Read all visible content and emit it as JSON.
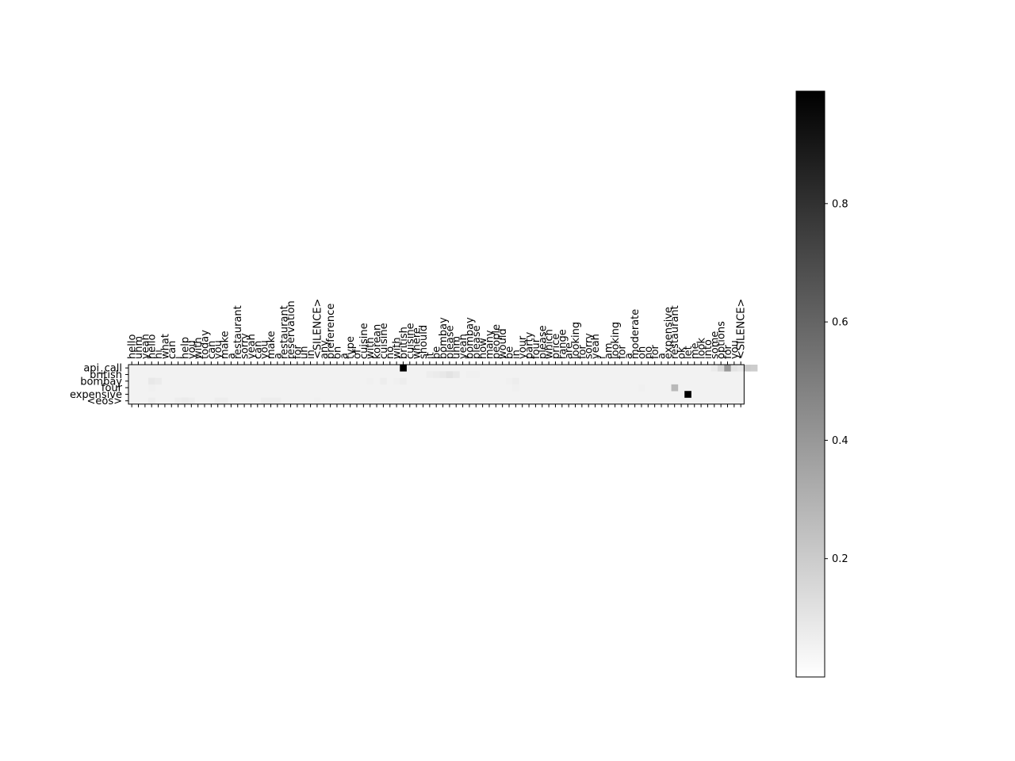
{
  "chart_data": {
    "type": "heatmap",
    "title": "",
    "xlabel": "",
    "ylabel": "",
    "x_labels": [
      "hello",
      "uhm",
      "yeah",
      "hello",
      "hi",
      "what",
      "can",
      "i",
      "help",
      "you",
      "with",
      "today",
      "can",
      "you",
      "make",
      "a",
      "restaurant",
      "sorry",
      "yeah",
      "can",
      "you",
      "make",
      "a",
      "restaurant",
      "reservation",
      "for",
      "uh",
      "in",
      "<SILENCE>",
      "any",
      "preference",
      "on",
      "a",
      "type",
      "of",
      "cuisine",
      "with",
      "korean",
      "cuisine",
      "no",
      "with",
      "british",
      "cuisine",
      "where",
      "should",
      "it",
      "be",
      "bombay",
      "please",
      "uhm",
      "yeah",
      "bombay",
      "please",
      "how",
      "many",
      "people",
      "would",
      "be",
      "in",
      "your",
      "party",
      "four",
      "please",
      "which",
      "price",
      "range",
      "are",
      "looking",
      "for",
      "sorry",
      "yeah",
      "i",
      "am",
      "looking",
      "for",
      "a",
      "moderate",
      "oh",
      "no",
      "for",
      "a",
      "expensive",
      "restaurant",
      "ok",
      "let",
      "me",
      "look",
      "into",
      "some",
      "options",
      "for",
      "you",
      "<SILENCE>"
    ],
    "y_labels": [
      "api_call",
      "british",
      "bombay",
      "four",
      "expensive",
      "<eos>"
    ],
    "colormap": "greys",
    "colorbar": {
      "min": 0.0,
      "max": 0.99,
      "ticks": [
        0.2,
        0.4,
        0.6,
        0.8
      ],
      "tick_labels": [
        "0.2",
        "0.4",
        "0.6",
        "0.8"
      ]
    },
    "cells": [
      {
        "row": 0,
        "col": 41,
        "value": 0.99
      },
      {
        "row": 0,
        "col": 88,
        "value": 0.05
      },
      {
        "row": 0,
        "col": 89,
        "value": 0.12
      },
      {
        "row": 0,
        "col": 90,
        "value": 0.38
      },
      {
        "row": 0,
        "col": 91,
        "value": 0.08
      },
      {
        "row": 0,
        "col": 92,
        "value": 0.06
      },
      {
        "row": 0,
        "col": 93,
        "value": 0.18
      },
      {
        "row": 0,
        "col": 94,
        "value": 0.17
      },
      {
        "row": 1,
        "col": 45,
        "value": 0.04
      },
      {
        "row": 1,
        "col": 46,
        "value": 0.05
      },
      {
        "row": 1,
        "col": 47,
        "value": 0.06
      },
      {
        "row": 1,
        "col": 48,
        "value": 0.08
      },
      {
        "row": 1,
        "col": 49,
        "value": 0.06
      },
      {
        "row": 1,
        "col": 51,
        "value": 0.03
      },
      {
        "row": 1,
        "col": 52,
        "value": 0.03
      },
      {
        "row": 2,
        "col": 3,
        "value": 0.06
      },
      {
        "row": 2,
        "col": 4,
        "value": 0.05
      },
      {
        "row": 2,
        "col": 36,
        "value": 0.03
      },
      {
        "row": 2,
        "col": 38,
        "value": 0.04
      },
      {
        "row": 2,
        "col": 40,
        "value": 0.03
      },
      {
        "row": 2,
        "col": 41,
        "value": 0.04
      },
      {
        "row": 2,
        "col": 57,
        "value": 0.03
      },
      {
        "row": 2,
        "col": 58,
        "value": 0.04
      },
      {
        "row": 3,
        "col": 3,
        "value": 0.03
      },
      {
        "row": 3,
        "col": 58,
        "value": 0.03
      },
      {
        "row": 3,
        "col": 77,
        "value": 0.03
      },
      {
        "row": 3,
        "col": 82,
        "value": 0.25
      },
      {
        "row": 4,
        "col": 84,
        "value": 0.99
      },
      {
        "row": 5,
        "col": 3,
        "value": 0.04
      },
      {
        "row": 5,
        "col": 7,
        "value": 0.04
      },
      {
        "row": 5,
        "col": 8,
        "value": 0.05
      },
      {
        "row": 5,
        "col": 9,
        "value": 0.04
      },
      {
        "row": 5,
        "col": 13,
        "value": 0.04
      },
      {
        "row": 5,
        "col": 14,
        "value": 0.04
      },
      {
        "row": 5,
        "col": 20,
        "value": 0.04
      },
      {
        "row": 5,
        "col": 21,
        "value": 0.04
      },
      {
        "row": 5,
        "col": 22,
        "value": 0.04
      },
      {
        "row": 5,
        "col": 28,
        "value": 0.03
      }
    ],
    "background_level": 0.02
  }
}
